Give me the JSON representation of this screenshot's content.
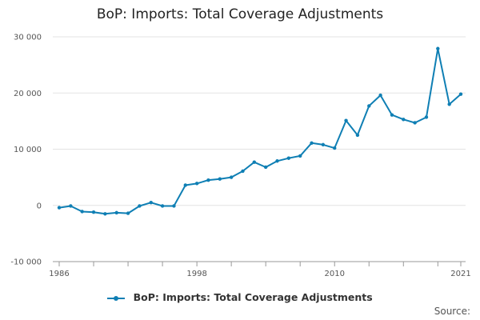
{
  "chart_data": {
    "type": "line",
    "title": "BoP: Imports: Total Coverage Adjustments",
    "xlabel": "",
    "ylabel": "",
    "x": [
      1986,
      1987,
      1988,
      1989,
      1990,
      1991,
      1992,
      1993,
      1994,
      1995,
      1996,
      1997,
      1998,
      1999,
      2000,
      2001,
      2002,
      2003,
      2004,
      2005,
      2006,
      2007,
      2008,
      2009,
      2010,
      2011,
      2012,
      2013,
      2014,
      2015,
      2016,
      2017,
      2018,
      2019,
      2020,
      2021
    ],
    "series": [
      {
        "name": "BoP: Imports: Total Coverage Adjustments",
        "values": [
          -400,
          -100,
          -1100,
          -1200,
          -1500,
          -1300,
          -1400,
          -100,
          500,
          -100,
          -100,
          3600,
          3900,
          4500,
          4700,
          5000,
          6100,
          7700,
          6800,
          7900,
          8400,
          8800,
          11100,
          10800,
          10200,
          15100,
          12500,
          17700,
          19600,
          16100,
          15300,
          14700,
          15700,
          27900,
          18000,
          19800
        ],
        "color": "#0f7fb4"
      }
    ],
    "ylim": [
      -10000,
      30000
    ],
    "yticks": [
      {
        "value": -10000,
        "label": "-10 000"
      },
      {
        "value": 0,
        "label": "0"
      },
      {
        "value": 10000,
        "label": "10 000"
      },
      {
        "value": 20000,
        "label": "20 000"
      },
      {
        "value": 30000,
        "label": "30 000"
      }
    ],
    "xtick_labels": [
      {
        "value": 1986,
        "label": "1986"
      },
      {
        "value": 1998,
        "label": "1998"
      },
      {
        "value": 2010,
        "label": "2010"
      },
      {
        "value": 2021,
        "label": "2021"
      }
    ],
    "grid": true,
    "legend_position": "bottom"
  },
  "legend": {
    "label": "BoP: Imports: Total Coverage Adjustments"
  },
  "source_label": "Source:"
}
